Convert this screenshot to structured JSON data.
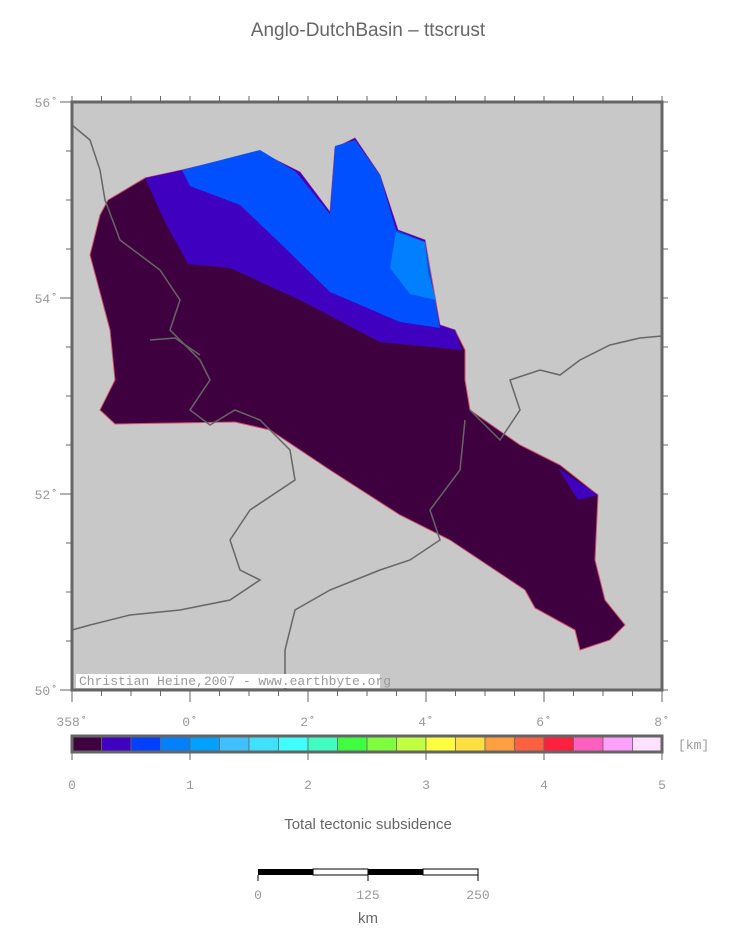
{
  "title": "Anglo-DutchBasin – ttscrust",
  "map": {
    "lat_ticks": [
      {
        "value": 50,
        "label": "50˚"
      },
      {
        "value": 52,
        "label": "52˚"
      },
      {
        "value": 54,
        "label": "54˚"
      },
      {
        "value": 56,
        "label": "56˚"
      }
    ],
    "lon_ticks": [
      {
        "value": 358,
        "label": "358˚"
      },
      {
        "value": 360,
        "label": "0˚"
      },
      {
        "value": 362,
        "label": "2˚"
      },
      {
        "value": 364,
        "label": "4˚"
      },
      {
        "value": 366,
        "label": "6˚"
      },
      {
        "value": 368,
        "label": "8˚"
      }
    ],
    "credit": "Christian Heine,2007 - www.earthbyte.org"
  },
  "colorbar": {
    "ticks": [
      0,
      1,
      2,
      3,
      4,
      5
    ],
    "unit": "[km]",
    "label": "Total tectonic subsidence",
    "colors": [
      "#3f003f",
      "#3f00bf",
      "#0040ff",
      "#0080ff",
      "#00a0ff",
      "#40c0ff",
      "#40e0ff",
      "#40ffff",
      "#40ffc0",
      "#40ff40",
      "#80ff40",
      "#c0ff40",
      "#ffff40",
      "#ffe040",
      "#ffa040",
      "#ff6040",
      "#ff2040",
      "#ff60c0",
      "#ffa0ff",
      "#ffe0ff"
    ]
  },
  "scalebar": {
    "ticks": [
      0,
      125,
      250
    ],
    "unit": "km"
  }
}
